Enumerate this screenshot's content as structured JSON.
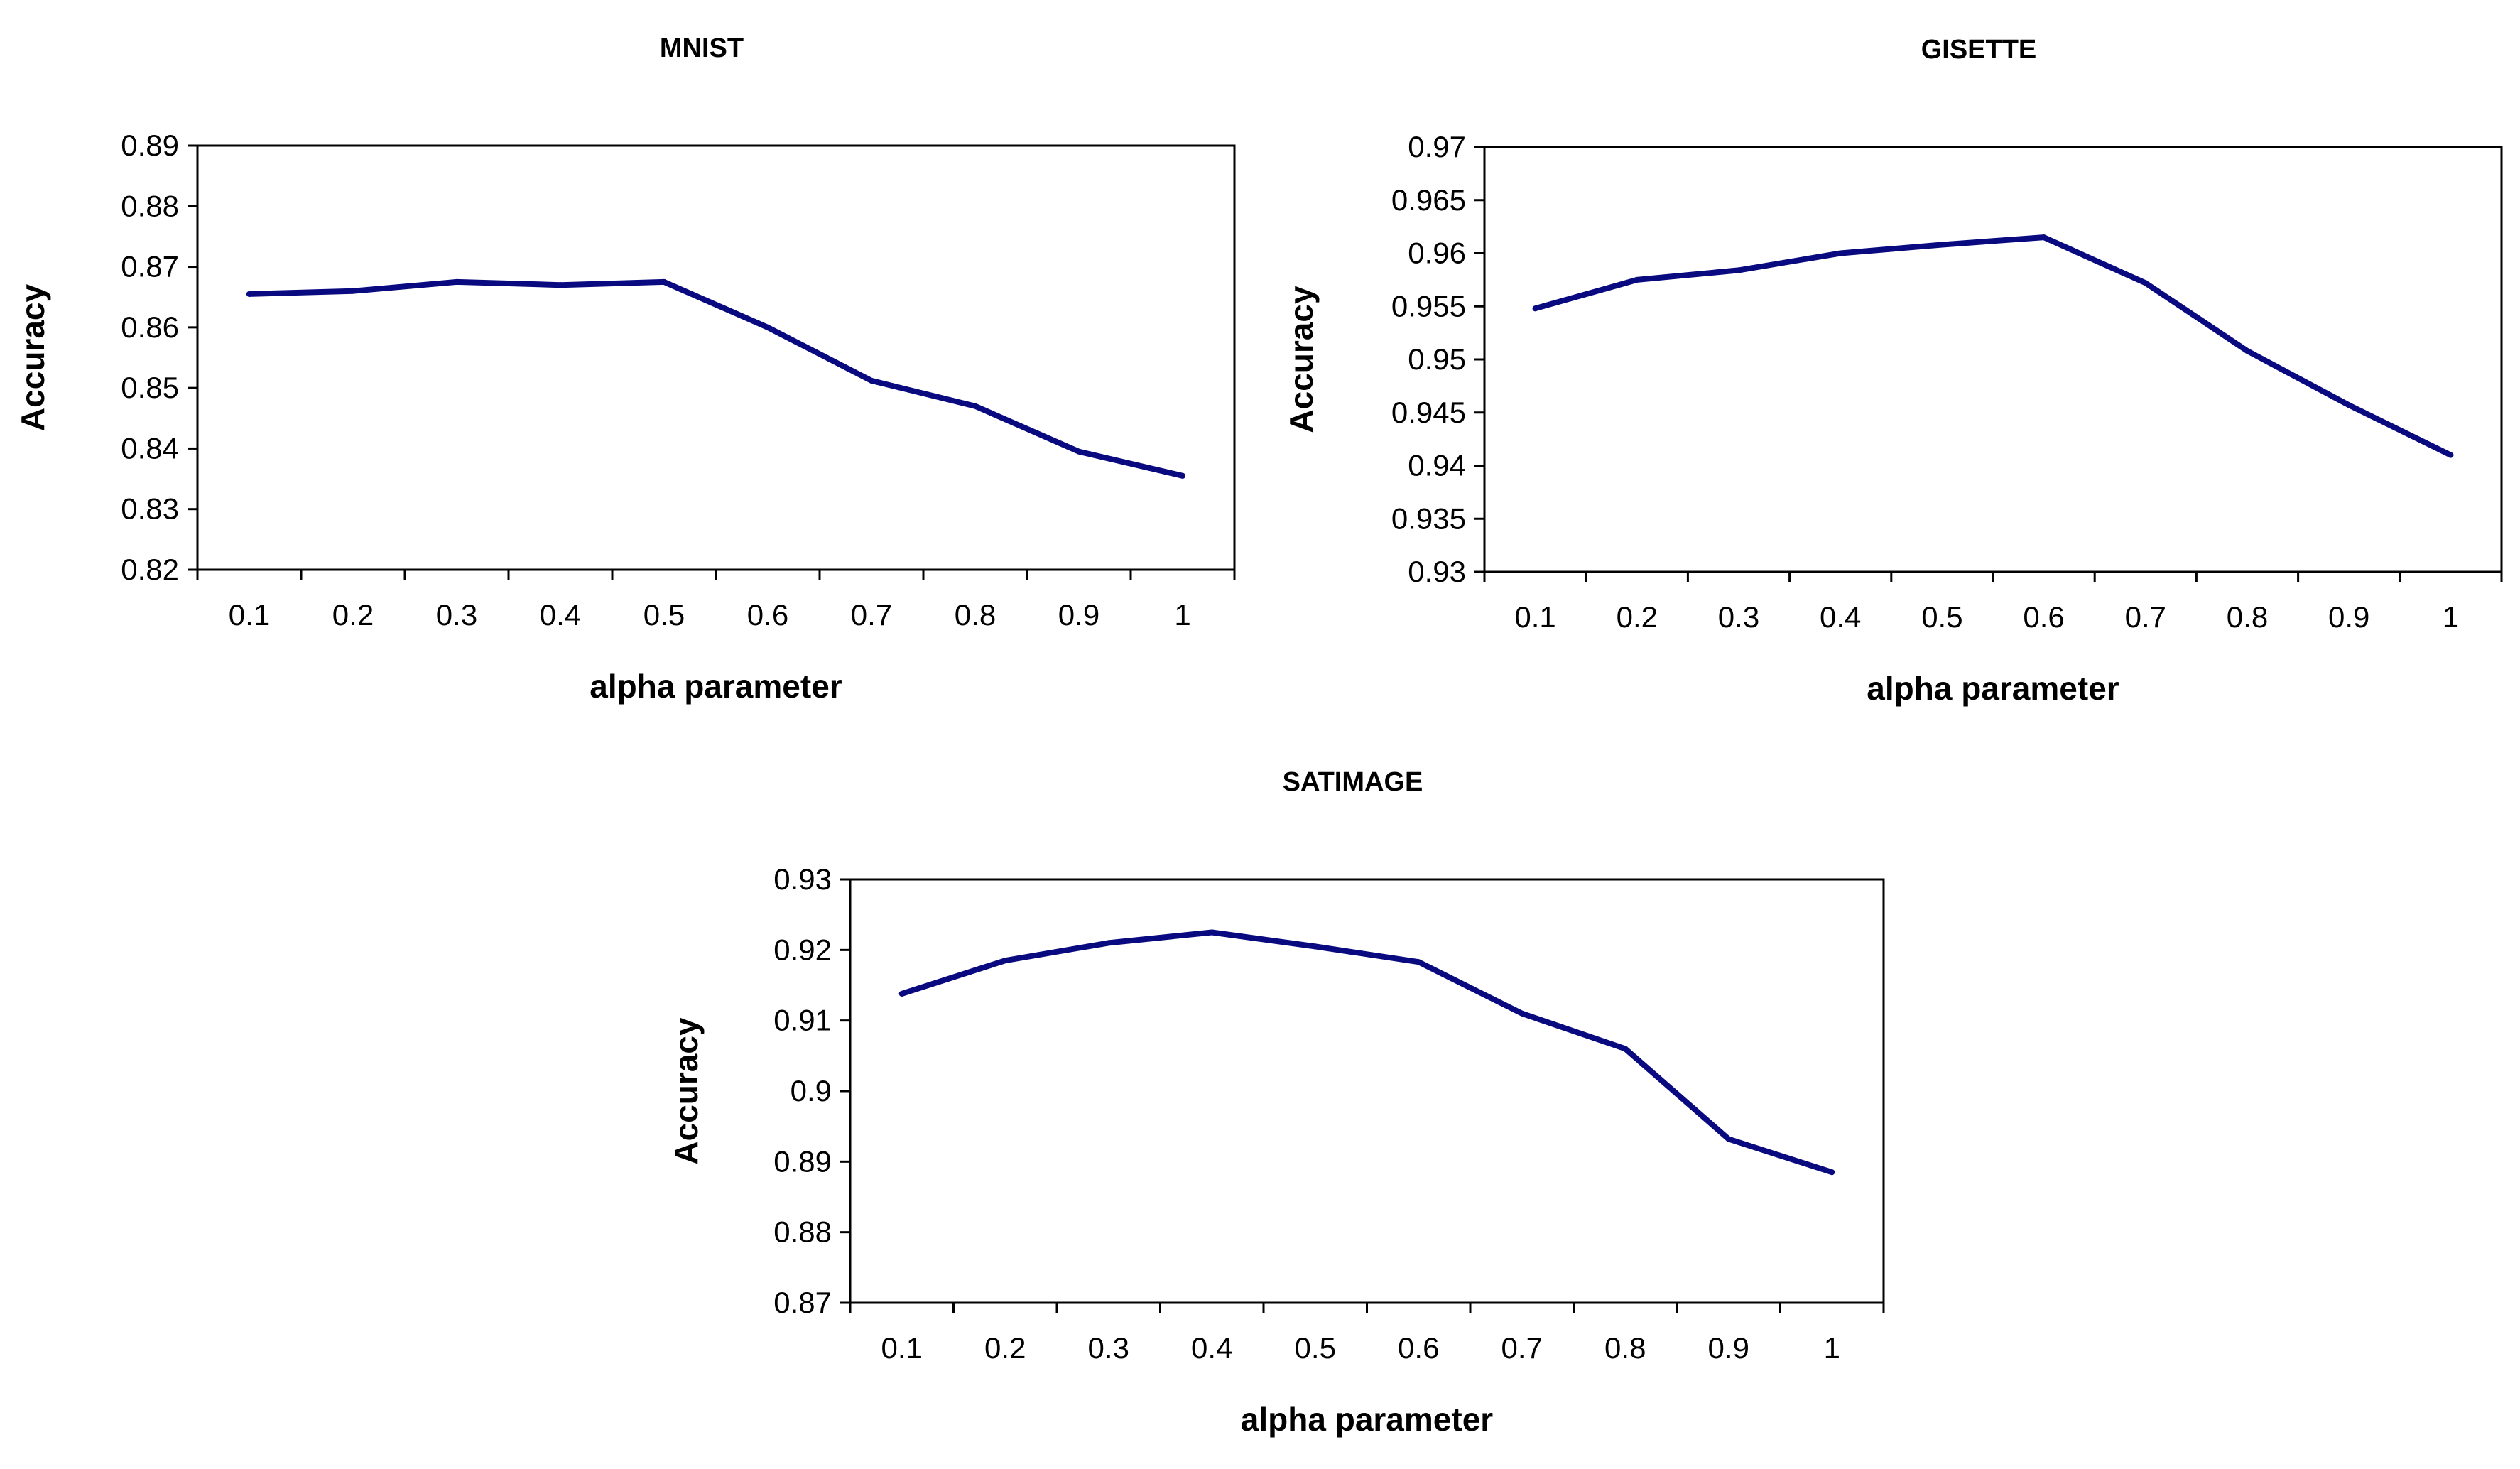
{
  "line_color": "#0a0a80",
  "chart_data": [
    {
      "type": "line",
      "title": "MNIST",
      "xlabel": "alpha parameter",
      "ylabel": "Accuracy",
      "categories": [
        "0.1",
        "0.2",
        "0.3",
        "0.4",
        "0.5",
        "0.6",
        "0.7",
        "0.8",
        "0.9",
        "1"
      ],
      "yticks": [
        "0.82",
        "0.83",
        "0.84",
        "0.85",
        "0.86",
        "0.87",
        "0.88",
        "0.89"
      ],
      "ylim": [
        0.82,
        0.89
      ],
      "series": [
        {
          "name": "Accuracy",
          "values": [
            0.8655,
            0.866,
            0.8675,
            0.867,
            0.8675,
            0.86,
            0.8512,
            0.847,
            0.8395,
            0.8355
          ]
        }
      ],
      "grid": false,
      "legend": "none"
    },
    {
      "type": "line",
      "title": "GISETTE",
      "xlabel": "alpha parameter",
      "ylabel": "Accuracy",
      "categories": [
        "0.1",
        "0.2",
        "0.3",
        "0.4",
        "0.5",
        "0.6",
        "0.7",
        "0.8",
        "0.9",
        "1"
      ],
      "yticks": [
        "0.93",
        "0.935",
        "0.94",
        "0.945",
        "0.95",
        "0.955",
        "0.96",
        "0.965",
        "0.97"
      ],
      "ylim": [
        0.93,
        0.97
      ],
      "series": [
        {
          "name": "Accuracy",
          "values": [
            0.9548,
            0.9575,
            0.9584,
            0.96,
            0.9608,
            0.9615,
            0.9572,
            0.9508,
            0.9457,
            0.941
          ]
        }
      ],
      "grid": false,
      "legend": "none"
    },
    {
      "type": "line",
      "title": "SATIMAGE",
      "xlabel": "alpha parameter",
      "ylabel": "Accuracy",
      "categories": [
        "0.1",
        "0.2",
        "0.3",
        "0.4",
        "0.5",
        "0.6",
        "0.7",
        "0.8",
        "0.9",
        "1"
      ],
      "yticks": [
        "0.87",
        "0.88",
        "0.89",
        "0.9",
        "0.91",
        "0.92",
        "0.93"
      ],
      "ylim": [
        0.87,
        0.93
      ],
      "series": [
        {
          "name": "Accuracy",
          "values": [
            0.9138,
            0.9185,
            0.921,
            0.9225,
            0.9205,
            0.9183,
            0.911,
            0.906,
            0.8932,
            0.8885
          ]
        }
      ],
      "grid": false,
      "legend": "none"
    }
  ]
}
